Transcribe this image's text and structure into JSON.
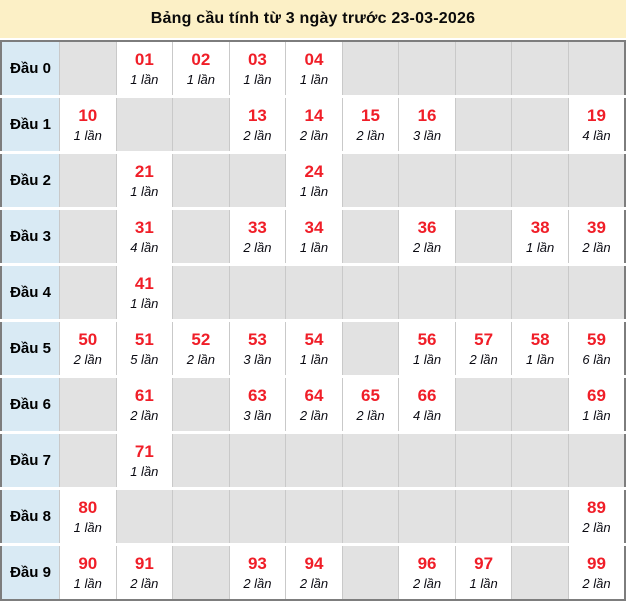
{
  "title": "Bảng cầu tính từ 3 ngày trước 23-03-2026",
  "colors": {
    "title_bg": "#fcf0c6",
    "title_text": "#0a0a0a",
    "table_border": "#7d7d7d",
    "label_cell_bg": "#d9eaf4",
    "empty_cell_bg": "#e2e2e2",
    "filled_cell_bg": "#ffffff",
    "number_red": "#f01e28",
    "count_text": "#0a0a12",
    "cell_divider": "#c9c9c9"
  },
  "table": {
    "count_unit": "lần",
    "rows": [
      {
        "label": "Đầu 0",
        "cells": [
          null,
          {
            "n": "01",
            "t": "1 lần"
          },
          {
            "n": "02",
            "t": "1 lần"
          },
          {
            "n": "03",
            "t": "1 lần"
          },
          {
            "n": "04",
            "t": "1 lần"
          },
          null,
          null,
          null,
          null,
          null
        ]
      },
      {
        "label": "Đầu 1",
        "cells": [
          {
            "n": "10",
            "t": "1 lần"
          },
          null,
          null,
          {
            "n": "13",
            "t": "2 lần"
          },
          {
            "n": "14",
            "t": "2 lần"
          },
          {
            "n": "15",
            "t": "2 lần"
          },
          {
            "n": "16",
            "t": "3 lần"
          },
          null,
          null,
          {
            "n": "19",
            "t": "4 lần"
          }
        ]
      },
      {
        "label": "Đầu 2",
        "cells": [
          null,
          {
            "n": "21",
            "t": "1 lần"
          },
          null,
          null,
          {
            "n": "24",
            "t": "1 lần"
          },
          null,
          null,
          null,
          null,
          null
        ]
      },
      {
        "label": "Đầu 3",
        "cells": [
          null,
          {
            "n": "31",
            "t": "4 lần"
          },
          null,
          {
            "n": "33",
            "t": "2 lần"
          },
          {
            "n": "34",
            "t": "1 lần"
          },
          null,
          {
            "n": "36",
            "t": "2 lần"
          },
          null,
          {
            "n": "38",
            "t": "1 lần"
          },
          {
            "n": "39",
            "t": "2 lần"
          }
        ]
      },
      {
        "label": "Đầu 4",
        "cells": [
          null,
          {
            "n": "41",
            "t": "1 lần"
          },
          null,
          null,
          null,
          null,
          null,
          null,
          null,
          null
        ]
      },
      {
        "label": "Đầu 5",
        "cells": [
          {
            "n": "50",
            "t": "2 lần"
          },
          {
            "n": "51",
            "t": "5 lần"
          },
          {
            "n": "52",
            "t": "2 lần"
          },
          {
            "n": "53",
            "t": "3 lần"
          },
          {
            "n": "54",
            "t": "1 lần"
          },
          null,
          {
            "n": "56",
            "t": "1 lần"
          },
          {
            "n": "57",
            "t": "2 lần"
          },
          {
            "n": "58",
            "t": "1 lần"
          },
          {
            "n": "59",
            "t": "6 lần"
          }
        ]
      },
      {
        "label": "Đầu 6",
        "cells": [
          null,
          {
            "n": "61",
            "t": "2 lần"
          },
          null,
          {
            "n": "63",
            "t": "3 lần"
          },
          {
            "n": "64",
            "t": "2 lần"
          },
          {
            "n": "65",
            "t": "2 lần"
          },
          {
            "n": "66",
            "t": "4 lần"
          },
          null,
          null,
          {
            "n": "69",
            "t": "1 lần"
          }
        ]
      },
      {
        "label": "Đầu 7",
        "cells": [
          null,
          {
            "n": "71",
            "t": "1 lần"
          },
          null,
          null,
          null,
          null,
          null,
          null,
          null,
          null
        ]
      },
      {
        "label": "Đầu 8",
        "cells": [
          {
            "n": "80",
            "t": "1 lần"
          },
          null,
          null,
          null,
          null,
          null,
          null,
          null,
          null,
          {
            "n": "89",
            "t": "2 lần"
          }
        ]
      },
      {
        "label": "Đầu 9",
        "cells": [
          {
            "n": "90",
            "t": "1 lần"
          },
          {
            "n": "91",
            "t": "2 lần"
          },
          null,
          {
            "n": "93",
            "t": "2 lần"
          },
          {
            "n": "94",
            "t": "2 lần"
          },
          null,
          {
            "n": "96",
            "t": "2 lần"
          },
          {
            "n": "97",
            "t": "1 lần"
          },
          null,
          {
            "n": "99",
            "t": "2 lần"
          }
        ]
      }
    ]
  }
}
